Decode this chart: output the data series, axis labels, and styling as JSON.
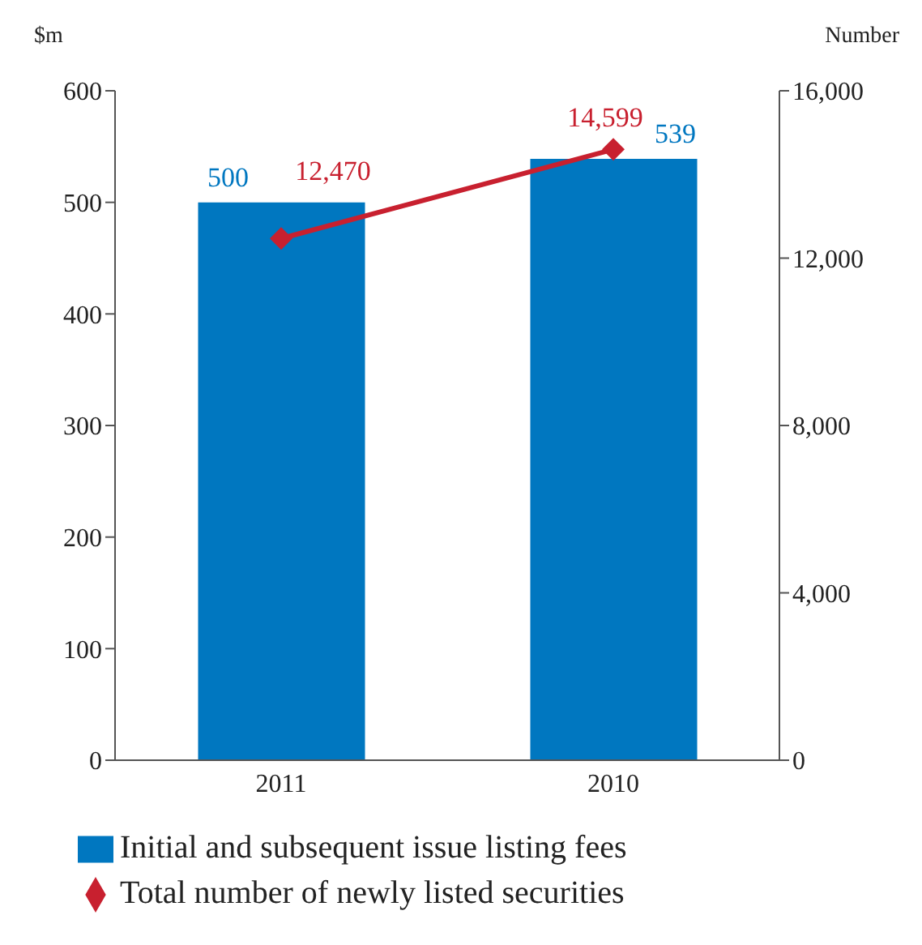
{
  "chart_data": {
    "type": "bar",
    "categories": [
      "2011",
      "2010"
    ],
    "ylabel": "$m",
    "y2label": "Number",
    "ylim": [
      0,
      600
    ],
    "yticks": [
      0,
      100,
      200,
      300,
      400,
      500,
      600
    ],
    "y2lim": [
      0,
      16000
    ],
    "y2ticks": [
      {
        "value": 0,
        "label": "0"
      },
      {
        "value": 4000,
        "label": "4,000"
      },
      {
        "value": 8000,
        "label": "8,000"
      },
      {
        "value": 12000,
        "label": "12,000"
      },
      {
        "value": 16000,
        "label": "16,000"
      }
    ],
    "series": [
      {
        "name": "Initial and subsequent issue listing fees",
        "color": "#0077c0",
        "values": [
          500,
          539
        ],
        "value_labels": [
          "500",
          "539"
        ]
      },
      {
        "name": "Total number of newly listed securities",
        "type": "line",
        "axis": "y2",
        "color": "#c8202f",
        "marker": "diamond",
        "values": [
          12470,
          14599
        ],
        "value_labels": [
          "12,470",
          "14,599"
        ]
      }
    ],
    "legend": "bottom",
    "grid": false
  }
}
